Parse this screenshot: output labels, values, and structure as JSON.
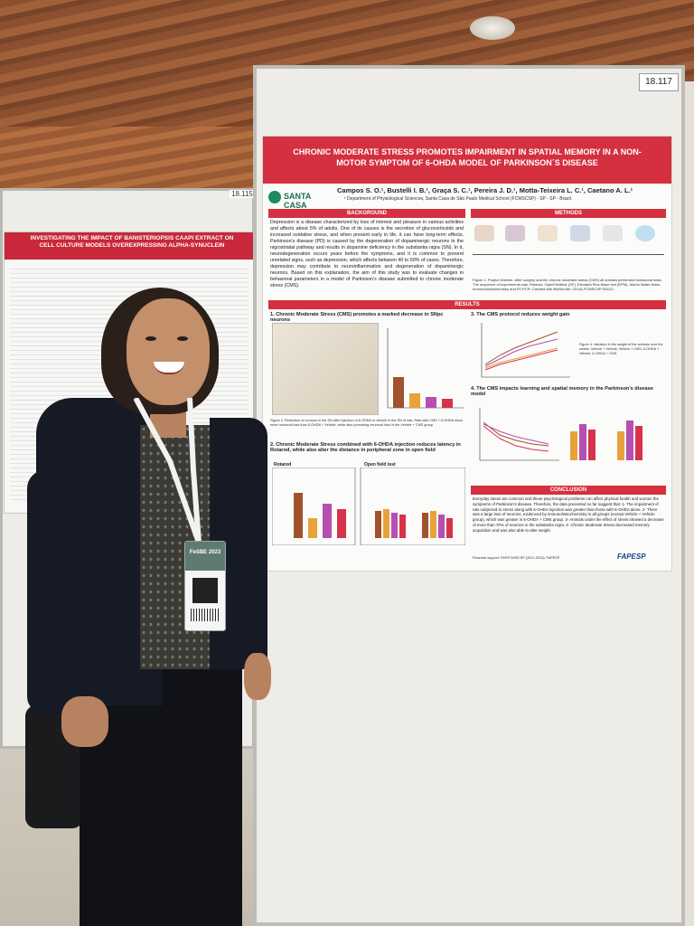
{
  "board_number": "18.117",
  "left_poster": {
    "title": "INVESTIGATING THE IMPACT OF BANISTERIOPSIS CAAPI EXTRACT ON CELL CULTURE MODELS OVEREXPRESSING ALPHA-SYNUCLEIN",
    "board_number": "18.115"
  },
  "poster": {
    "title": "CHRONIC MODERATE STRESS PROMOTES IMPAIRMENT IN SPATIAL MEMORY IN A NON-MOTOR SYMPTOM OF 6-OHDA MODEL OF PARKINSON´S DISEASE",
    "logo_text": "SANTA CASA",
    "authors": "Campos S. O.¹, Bustelli I. B.¹, Graça S. C.¹, Pereira J. D.¹, Motta-Teixeira L. C.¹, Caetano A. L.¹",
    "affiliation": "¹ Department of Physiological Sciences, Santa Casa de São Paulo Medical School (FCMSCSP) - SP - SP - Brazil.",
    "sections": {
      "background": "BACKGROUND",
      "methods": "METHODS",
      "results": "RESULTS",
      "conclusion": "CONCLUSION"
    },
    "background_text": "Depression is a disease characterized by loss of interest and pleasure in various activities and affects about 5% of adults. One of its causes is the secretion of glucocorticoids and increased oxidative stress, and when present early in life, it can have long-term effects. Parkinson's disease (PD) is caused by the degeneration of dopaminergic neurons in the nigrostriatal pathway and results in dopamine deficiency in the substantia nigra (SN). In it, neurodegeneration occurs years before the symptoms, and it is common to present unrelated signs, such as depression, which affects between 40 to 50% of cases. Therefore, depression may contribute to neuroinflammation and degeneration of dopaminergic neurons. Based on this explanation, the aim of this study was to evaluate changes in behavioral parameters in a model of Parkinson's disease submitted to chronic moderate stress (CMS).",
    "methods_caption": "Figure 1. Project timeline. After surgery and the chronic moderate stress (CMS) all animals performed behavioral tests. The sequence of experiments was: Rotarod, OpenFieldtest (OF), Elevated Plus Maze test (EPM), Morris Water Maze, Immunohistochemistry and RT-PCR. Created with BioRender. CEUA-FCMSCSP 002/22.",
    "fig1_title": "1. Chronic Moderate Stress (CMS) promotes a marked decrease in SNpc neurons",
    "fig1_caption": "Figure 2. Reduction of neurons in the SN after injection of 6-OHDA or vehicle in the SN of rats. Rats with CMS + 6-OHDA show more neuronal loss than 6-OHDA + Vehicle, while also promoting neuronal loss in the Vehicle + CMS group.",
    "fig2_title": "2. Chronic Moderate Stress combined with 6-OHDA injection reduces latency in Rotarod, while also alter the distance in peripheral zone in open field",
    "fig2a_label": "Rotarod",
    "fig2b_label": "Open field test",
    "fig3_title": "3. The CMS protocol reduces weight gain",
    "fig3_caption": "Figure 4. Variation in the weight of the animals over the weeks. Vehicle + Vehicle; Vehicle + CMS; 6-OHDA + Vehicle; 6-OHDA + CMS.",
    "fig4_title": "4. The CMS impacts learning and spatial memory in the Parkinson's disease model",
    "conclusion_text": "Everyday stress are common and these psychological problems can affect physical health and worsen the symptoms of Parkinson's disease. Therefore, the data presented so far suggest that: 1- The impairment of rats subjected to stress along with 6-OHDA injection was greater than those with 6-OHDA alone. 2- There was a large loss of neurons, evidenced by immunohistochemistry in all groups (except Vehicle + Vehicle group), which was greater in 6-OHDA + CMS group. 3- Animals under the effect of stress showed a decrease of more than 70% of neurons in the substantia nigra. 4- Chronic Moderate Stress decreased memory acquisition and was also able to alter weight.",
    "funding": "Financial support: FAP/FCMSCSP (2021-2023); FAPESP",
    "funder_logo": "FAPESP"
  },
  "badge": {
    "event": "FeSBE 2023"
  },
  "colors": {
    "banner_red": "#d4303f",
    "board_frame": "#bdbcb7",
    "jacket": "#161a24"
  }
}
